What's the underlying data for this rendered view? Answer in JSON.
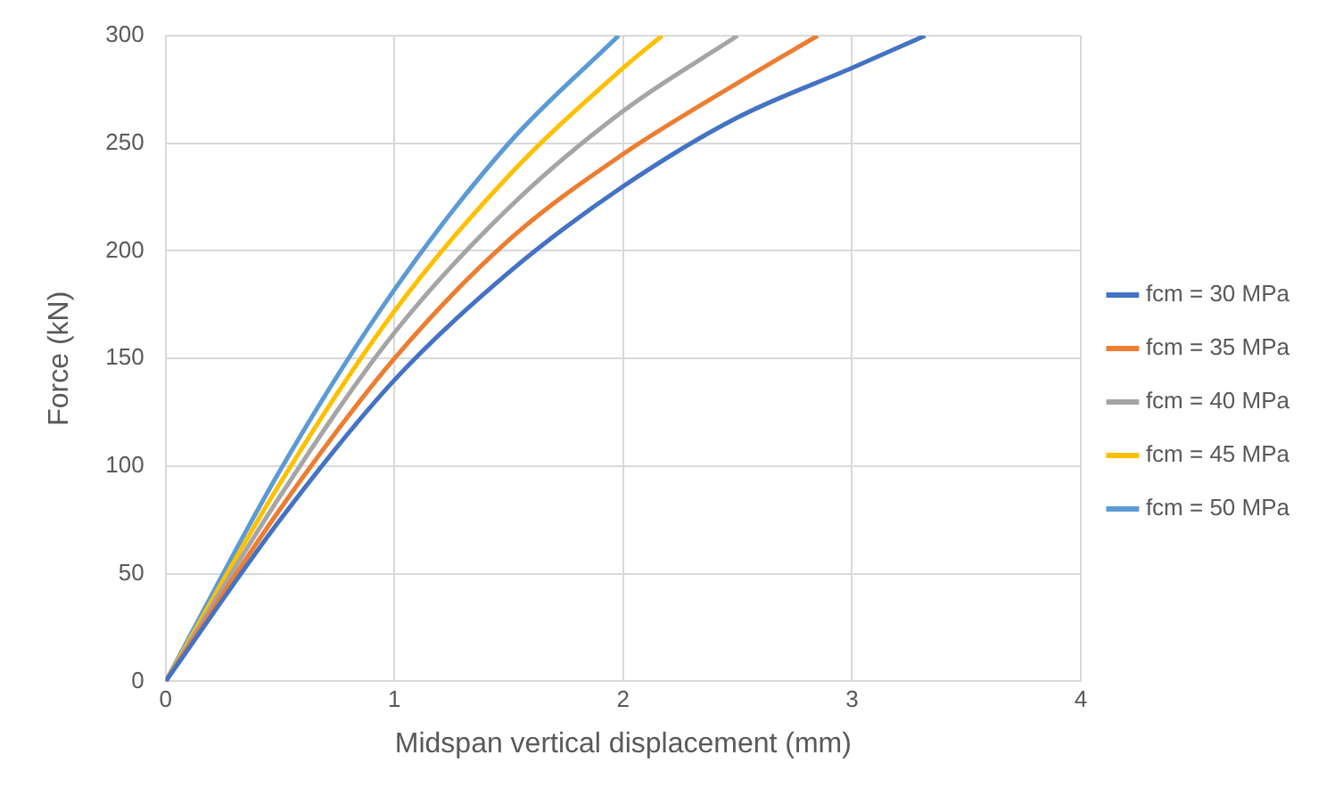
{
  "chart_data": {
    "type": "line",
    "xlabel": "Midspan vertical displacement (mm)",
    "ylabel": "Force (kN)",
    "xlim": [
      0,
      4
    ],
    "xticks": [
      0,
      1,
      2,
      3,
      4
    ],
    "ylim": [
      0,
      300
    ],
    "yticks": [
      0,
      50,
      100,
      150,
      200,
      250,
      300
    ],
    "grid": true,
    "legend": "right",
    "marker": "none",
    "series": [
      {
        "name": "fcm = 30 MPa",
        "color": "#4472c4",
        "x": [
          0,
          0.5,
          1,
          1.5,
          2,
          2.5,
          3,
          3.32
        ],
        "values": [
          0,
          75,
          140,
          190,
          230,
          262,
          285,
          300
        ]
      },
      {
        "name": "fcm = 35 MPa",
        "color": "#ed7d31",
        "x": [
          0,
          0.5,
          1,
          1.5,
          2,
          2.5,
          2.85
        ],
        "values": [
          0,
          80,
          150,
          205,
          245,
          278,
          300
        ]
      },
      {
        "name": "fcm = 40 MPa",
        "color": "#a5a5a5",
        "x": [
          0,
          0.5,
          1,
          1.5,
          2,
          2.5
        ],
        "values": [
          0,
          86,
          162,
          220,
          265,
          300
        ]
      },
      {
        "name": "fcm = 45 MPa",
        "color": "#ffc000",
        "x": [
          0,
          0.5,
          1,
          1.5,
          2,
          2.17
        ],
        "values": [
          0,
          92,
          172,
          235,
          285,
          300
        ]
      },
      {
        "name": "fcm = 50 MPa",
        "color": "#5b9bd5",
        "x": [
          0,
          0.5,
          1,
          1.5,
          1.98
        ],
        "values": [
          0,
          98,
          182,
          250,
          300
        ]
      }
    ]
  }
}
